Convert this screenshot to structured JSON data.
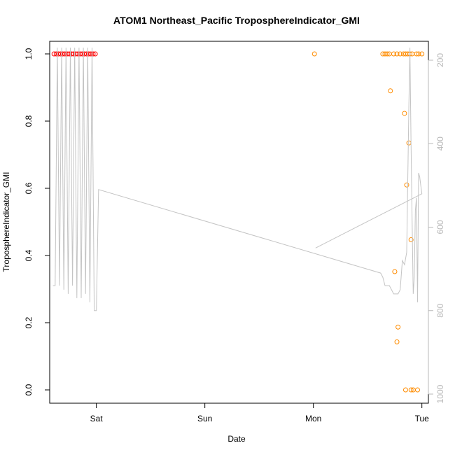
{
  "chart_data": {
    "type": "scatter",
    "title": "ATOM1 Northeast_Pacific TroposphereIndicator_GMI",
    "xlabel": "Date",
    "ylabel": "TroposphereIndicator_GMI",
    "x_unit": "days",
    "xlim": [
      -0.43,
      3.06
    ],
    "ylim": [
      0,
      1
    ],
    "yticks": [
      0.0,
      0.2,
      0.4,
      0.6,
      0.8,
      1.0
    ],
    "ytick_labels": [
      "0.0",
      "0.2",
      "0.4",
      "0.6",
      "0.8",
      "1.0"
    ],
    "xticks": [
      0,
      1,
      2,
      3
    ],
    "xtick_labels": [
      "Sat",
      "Sun",
      "Mon",
      "Tue"
    ],
    "right_axis": {
      "label": "",
      "lim": [
        1040,
        170
      ],
      "ticks": [
        200,
        400,
        600,
        800,
        1000
      ],
      "tick_labels": [
        "200",
        "400",
        "600",
        "800",
        "1000"
      ],
      "color": "#b8b8b8"
    },
    "series": [
      {
        "color": "#ff0000",
        "marker": "circle-open",
        "x": [
          -0.39,
          -0.37,
          -0.35,
          -0.33,
          -0.31,
          -0.29,
          -0.27,
          -0.25,
          -0.23,
          -0.21,
          -0.19,
          -0.17,
          -0.15,
          -0.13,
          -0.11,
          -0.09,
          -0.07,
          -0.05,
          -0.03,
          -0.01
        ],
        "y": [
          1,
          1,
          1,
          1,
          1,
          1,
          1,
          1,
          1,
          1,
          1,
          1,
          1,
          1,
          1,
          1,
          1,
          1,
          1,
          1
        ]
      },
      {
        "color": "#ff8c00",
        "marker": "circle-open",
        "x": [
          2.01,
          2.64,
          2.66,
          2.68,
          2.7,
          2.74,
          2.77,
          2.8,
          2.83,
          2.85,
          2.87,
          2.89,
          2.91,
          2.95,
          2.97,
          3.0,
          2.71,
          2.75,
          2.78,
          2.77,
          2.84,
          2.86,
          2.88,
          2.9,
          2.9,
          2.92,
          2.96,
          2.85
        ],
        "y": [
          1,
          1,
          1,
          1,
          1,
          1,
          1,
          1,
          1,
          1,
          1,
          1,
          1,
          1,
          1,
          1,
          0.89,
          0.352,
          0.187,
          0.143,
          0.823,
          0.61,
          0.735,
          0.447,
          0.0,
          0.0,
          0.0,
          0.0
        ]
      },
      {
        "color": "#c4c4c4",
        "marker": "line",
        "axis": "right",
        "x": [
          -0.4,
          -0.38,
          -0.36,
          -0.34,
          -0.32,
          -0.3,
          -0.28,
          -0.26,
          -0.24,
          -0.22,
          -0.2,
          -0.18,
          -0.16,
          -0.14,
          -0.12,
          -0.1,
          -0.08,
          -0.06,
          -0.04,
          -0.02,
          0.0,
          0.02,
          2.62,
          2.64,
          2.66,
          2.68,
          2.7,
          2.72,
          2.74,
          2.76,
          2.78,
          2.8,
          2.82,
          2.84,
          2.86,
          2.88,
          2.89,
          2.9,
          2.91,
          2.92,
          2.93,
          2.94,
          2.95,
          2.96,
          2.97,
          2.98,
          2.99,
          3.0,
          2.02,
          3.0
        ],
        "y": [
          740,
          740,
          170,
          740,
          170,
          750,
          170,
          760,
          170,
          740,
          170,
          770,
          170,
          770,
          170,
          760,
          170,
          780,
          170,
          800,
          800,
          510,
          710,
          720,
          740,
          740,
          740,
          750,
          760,
          760,
          760,
          750,
          680,
          690,
          660,
          310,
          170,
          400,
          580,
          760,
          720,
          560,
          530,
          780,
          470,
          480,
          500,
          520,
          650,
          520
        ]
      }
    ]
  }
}
